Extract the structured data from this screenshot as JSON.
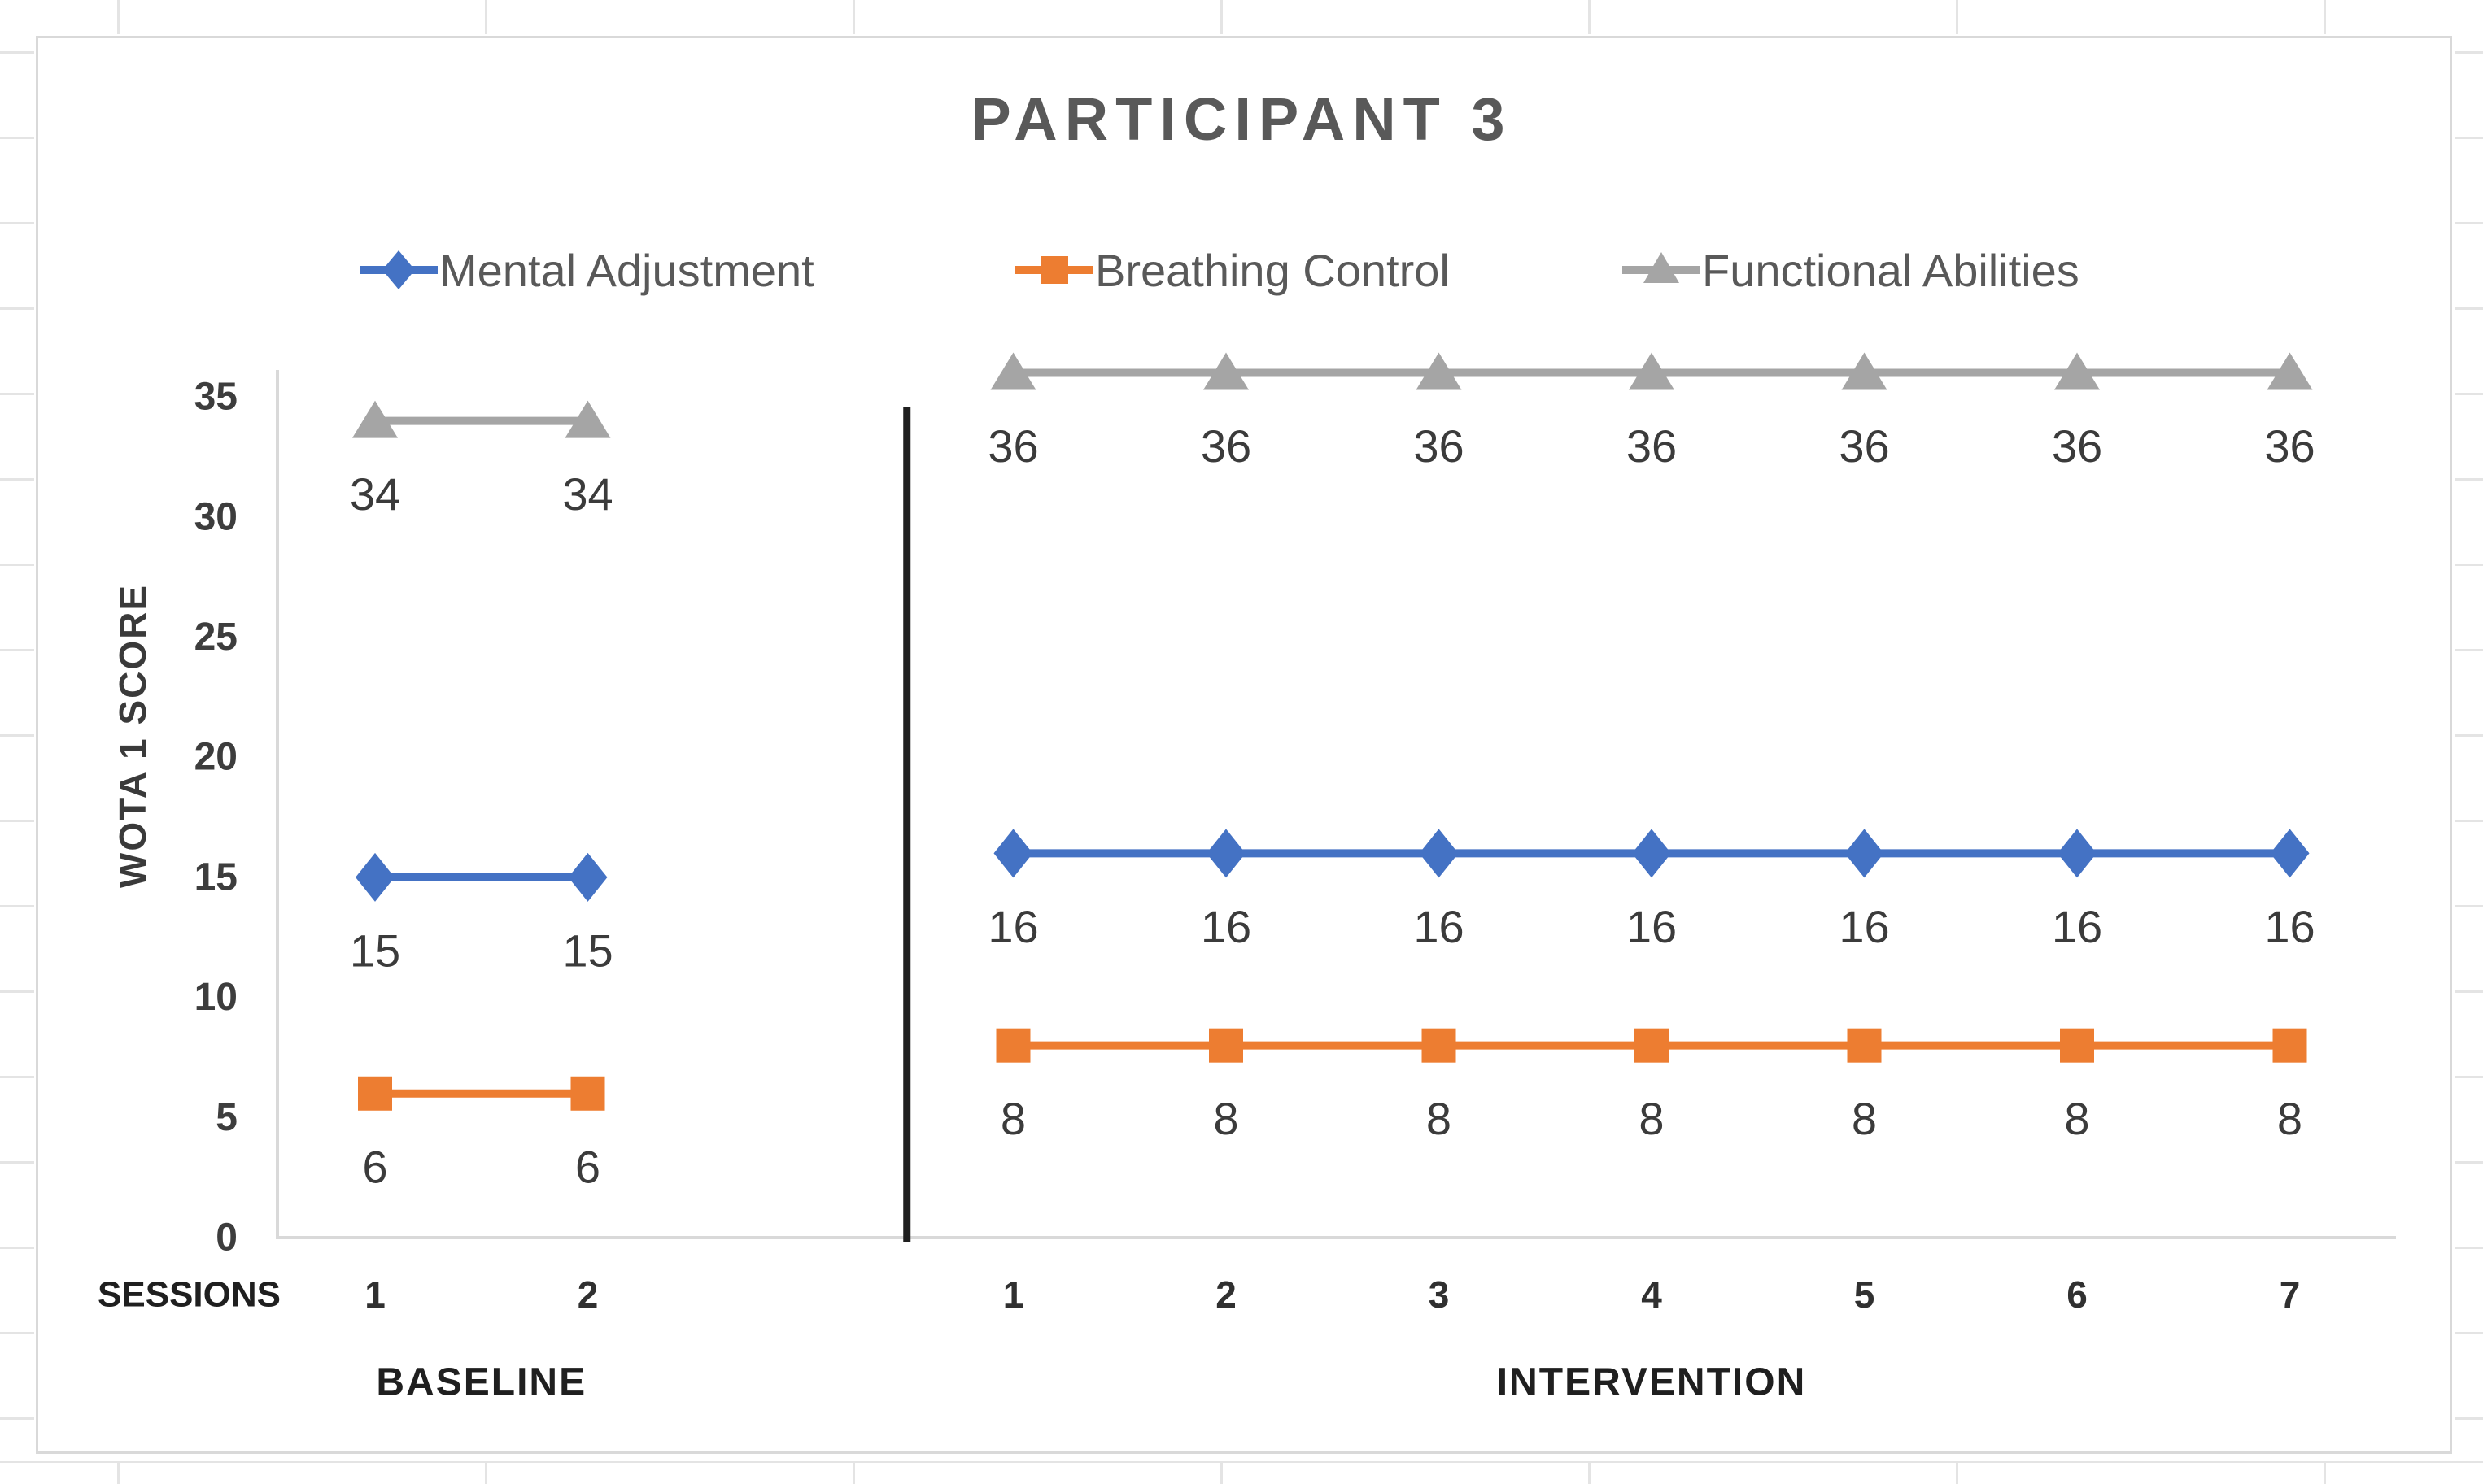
{
  "chart_data": {
    "type": "line",
    "title": "PARTICIPANT 3",
    "ylabel": "WOTA 1 SCORE",
    "xlabel": "SESSIONS",
    "ylim": [
      0,
      35
    ],
    "ytick_step": 5,
    "ytick_labels": [
      "0",
      "5",
      "10",
      "15",
      "20",
      "25",
      "30",
      "35"
    ],
    "grid": false,
    "legend_position": "top",
    "data_labels": true,
    "phase_divider": true,
    "phases": [
      {
        "label": "BASELINE",
        "sessions": [
          "1",
          "2"
        ]
      },
      {
        "label": "INTERVENTION",
        "sessions": [
          "1",
          "2",
          "3",
          "4",
          "5",
          "6",
          "7"
        ]
      }
    ],
    "series": [
      {
        "name": "Mental Adjustment",
        "color": "#4472C4",
        "marker": "diamond",
        "values_by_phase": [
          [
            15,
            15
          ],
          [
            16,
            16,
            16,
            16,
            16,
            16,
            16
          ]
        ]
      },
      {
        "name": "Breathing Control",
        "color": "#ED7D31",
        "marker": "square",
        "values_by_phase": [
          [
            6,
            6
          ],
          [
            8,
            8,
            8,
            8,
            8,
            8,
            8
          ]
        ]
      },
      {
        "name": "Functional Abilities",
        "color": "#A5A5A5",
        "marker": "triangle",
        "values_by_phase": [
          [
            34,
            34
          ],
          [
            36,
            36,
            36,
            36,
            36,
            36,
            36
          ]
        ]
      }
    ]
  },
  "colors": {
    "axis_line": "#d9d9d9",
    "chart_border": "#d9d9d9",
    "spreadsheet_grid": "#e4e4e4",
    "divider": "#1f1f1f",
    "title_text": "#595959",
    "legend_text": "#595959",
    "data_label_text": "#3b3b3b",
    "tick_text": "#3d3d3d",
    "phase_text": "#1f1f1f",
    "session_text": "#303030"
  }
}
